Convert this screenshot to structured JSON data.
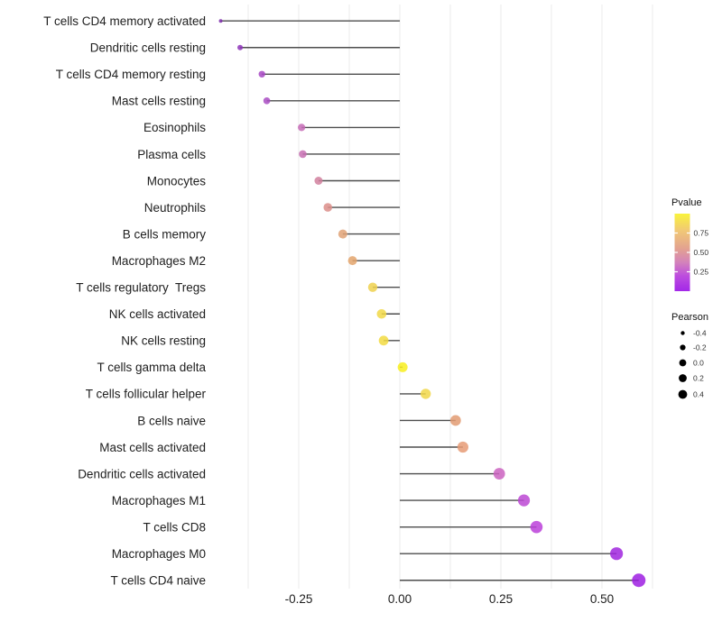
{
  "chart_data": {
    "type": "scatter",
    "subtype": "lollipop",
    "title": "",
    "xlabel": "",
    "ylabel": "",
    "grid": true,
    "legend_position": "right",
    "xlim": [
      -0.46,
      0.63
    ],
    "x_ticks": [
      {
        "label": "-0.25",
        "value": -0.25
      },
      {
        "label": "0.00",
        "value": 0.0
      },
      {
        "label": "0.25",
        "value": 0.25
      },
      {
        "label": "0.50",
        "value": 0.5
      }
    ],
    "minor_grid_step": 0.125,
    "points": [
      {
        "label": "T cells CD4 memory activated",
        "pearson": -0.443,
        "color": "#7c2bab",
        "radius": 2.0
      },
      {
        "label": "Dendritic cells resting",
        "pearson": -0.395,
        "color": "#8d33b9",
        "radius": 3.0
      },
      {
        "label": "T cells CD4 memory resting",
        "pearson": -0.341,
        "color": "#a746c3",
        "radius": 3.7
      },
      {
        "label": "Mast cells resting",
        "pearson": -0.329,
        "color": "#a94cc3",
        "radius": 3.8
      },
      {
        "label": "Eosinophils",
        "pearson": -0.243,
        "color": "#c66bb6",
        "radius": 4.1
      },
      {
        "label": "Plasma cells",
        "pearson": -0.24,
        "color": "#c76fb2",
        "radius": 4.3
      },
      {
        "label": "Monocytes",
        "pearson": -0.201,
        "color": "#d1809d",
        "radius": 4.5
      },
      {
        "label": "Neutrophils",
        "pearson": -0.178,
        "color": "#dc8e89",
        "radius": 4.8
      },
      {
        "label": "B cells memory",
        "pearson": -0.141,
        "color": "#e0a275",
        "radius": 5.0
      },
      {
        "label": "Macrophages M2",
        "pearson": -0.117,
        "color": "#e3a56c",
        "radius": 5.0
      },
      {
        "label": "T cells regulatory  Tregs",
        "pearson": -0.067,
        "color": "#efd14e",
        "radius": 5.2
      },
      {
        "label": "NK cells activated",
        "pearson": -0.045,
        "color": "#f1d846",
        "radius": 5.3
      },
      {
        "label": "NK cells resting",
        "pearson": -0.04,
        "color": "#f2da42",
        "radius": 5.4
      },
      {
        "label": "T cells gamma delta",
        "pearson": 0.007,
        "color": "#f8ee1e",
        "radius": 5.5
      },
      {
        "label": "T cells follicular helper",
        "pearson": 0.064,
        "color": "#f1d748",
        "radius": 5.7
      },
      {
        "label": "B cells naive",
        "pearson": 0.138,
        "color": "#e29b72",
        "radius": 5.9
      },
      {
        "label": "Mast cells activated",
        "pearson": 0.156,
        "color": "#e69b76",
        "radius": 6.1
      },
      {
        "label": "Dendritic cells activated",
        "pearson": 0.246,
        "color": "#cb63c1",
        "radius": 6.4
      },
      {
        "label": "Macrophages M1",
        "pearson": 0.307,
        "color": "#bc48d3",
        "radius": 6.6
      },
      {
        "label": "T cells CD8",
        "pearson": 0.338,
        "color": "#bb40d9",
        "radius": 6.8
      },
      {
        "label": "Macrophages M0",
        "pearson": 0.536,
        "color": "#a026de",
        "radius": 7.1
      },
      {
        "label": "T cells CD4 naive",
        "pearson": 0.591,
        "color": "#9d1fe2",
        "radius": 7.5
      }
    ],
    "legends": {
      "pvalue": {
        "title": "Pvalue",
        "range": [
          0,
          1
        ],
        "tick_labels": [
          "0.75",
          "0.50",
          "0.25"
        ],
        "tick_values": [
          0.75,
          0.5,
          0.25
        ],
        "gradient_top_to_bottom": [
          {
            "offset": 0.0,
            "color": "#f9f33c"
          },
          {
            "offset": 0.22,
            "color": "#f1c876"
          },
          {
            "offset": 0.45,
            "color": "#e3a290"
          },
          {
            "offset": 0.63,
            "color": "#d382bb"
          },
          {
            "offset": 0.8,
            "color": "#bd4ede"
          },
          {
            "offset": 1.0,
            "color": "#a328e8"
          }
        ]
      },
      "pearson": {
        "title": "Pearson",
        "entries": [
          {
            "label": "-0.4",
            "radius": 2.2
          },
          {
            "label": "-0.2",
            "radius": 3.1
          },
          {
            "label": "0.0",
            "radius": 3.9
          },
          {
            "label": "0.2",
            "radius": 4.4
          },
          {
            "label": "0.4",
            "radius": 4.9
          }
        ],
        "dot_color": "#000000"
      }
    },
    "style": {
      "grid_color": "#ebebeb",
      "stem_color": "#4d4d4d",
      "axis_text_color": "#202020",
      "legend_text_color": "#333333",
      "dot_opacity": 0.85
    }
  }
}
